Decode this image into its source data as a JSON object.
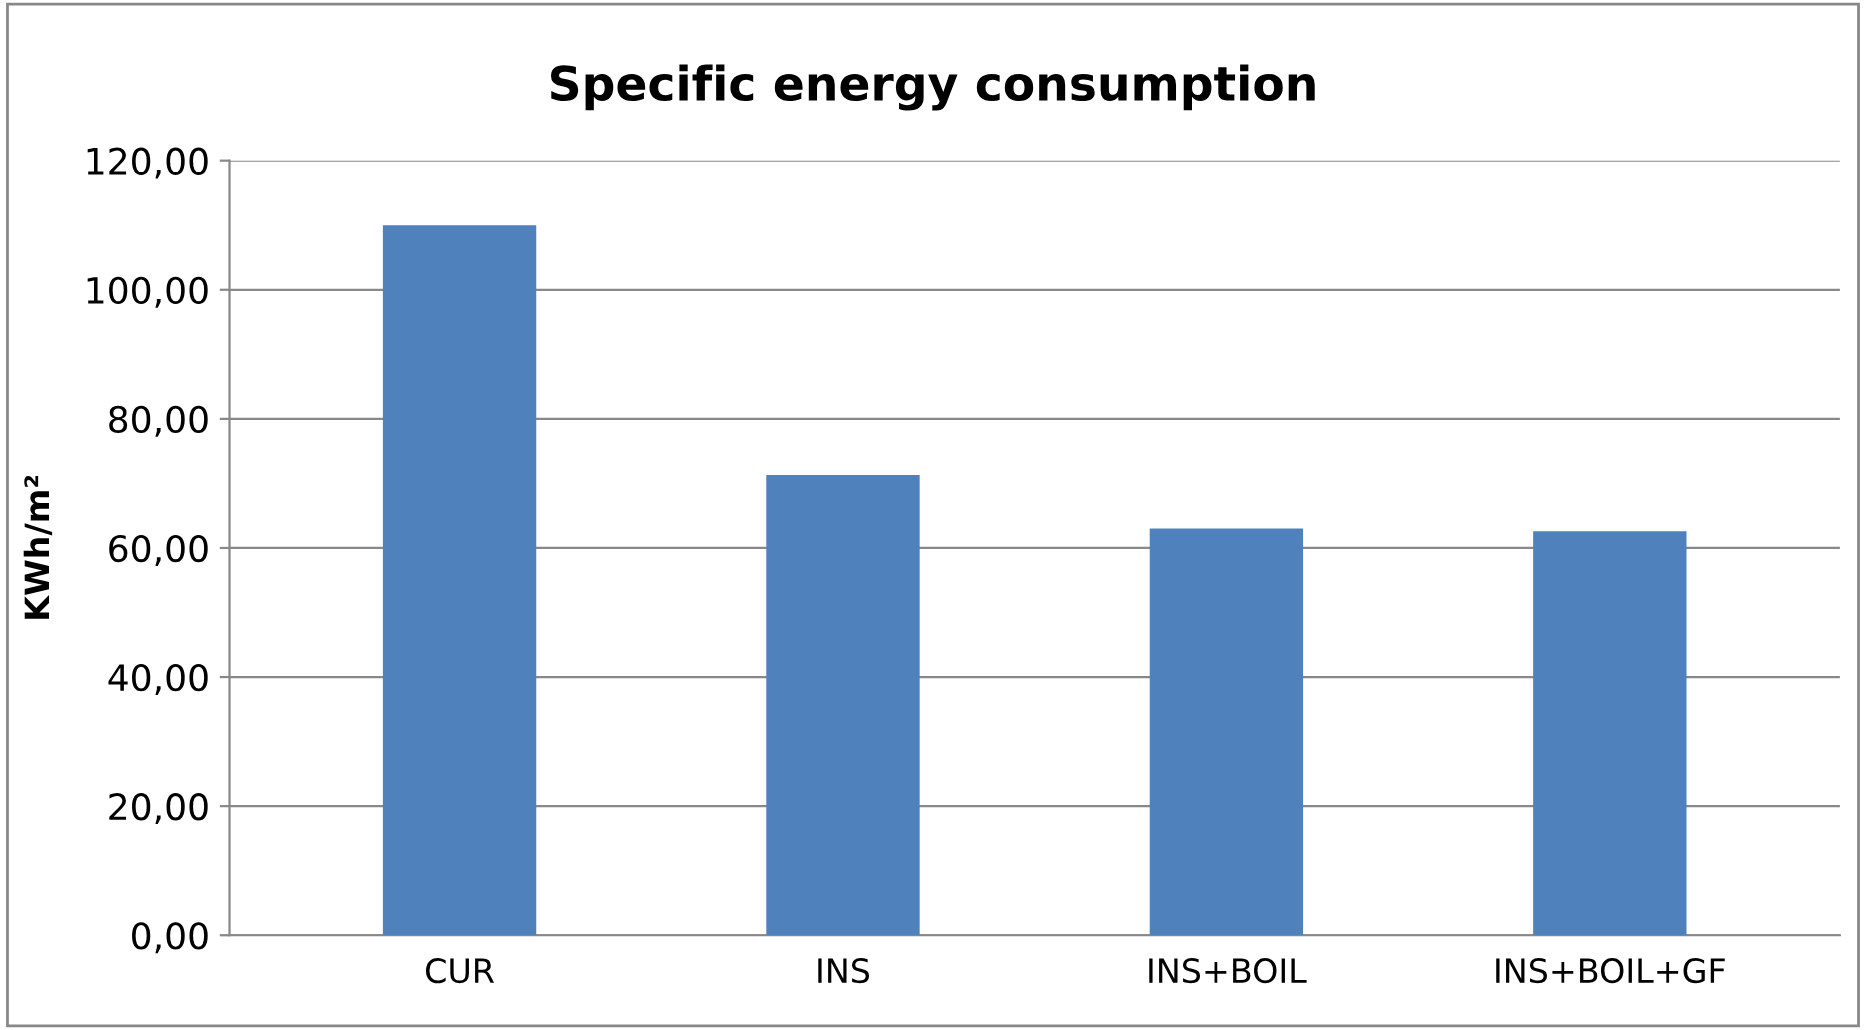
{
  "chart_data": {
    "type": "bar",
    "title": "Specific energy consumption",
    "ylabel": "KWh/m²",
    "categories": [
      "CUR",
      "INS",
      "INS+BOIL",
      "INS+BOIL+GF"
    ],
    "values": [
      110,
      71.3,
      63,
      62.6
    ],
    "color": "#4f81bd",
    "ylim": [
      0,
      120
    ],
    "yticks": [
      {
        "value": 0,
        "label": "0,00"
      },
      {
        "value": 20,
        "label": "20,00"
      },
      {
        "value": 40,
        "label": "40,00"
      },
      {
        "value": 60,
        "label": "60,00"
      },
      {
        "value": 80,
        "label": "80,00"
      },
      {
        "value": 100,
        "label": "100,00"
      },
      {
        "value": 120,
        "label": "120,00"
      }
    ],
    "grid": "y",
    "legend": false
  }
}
